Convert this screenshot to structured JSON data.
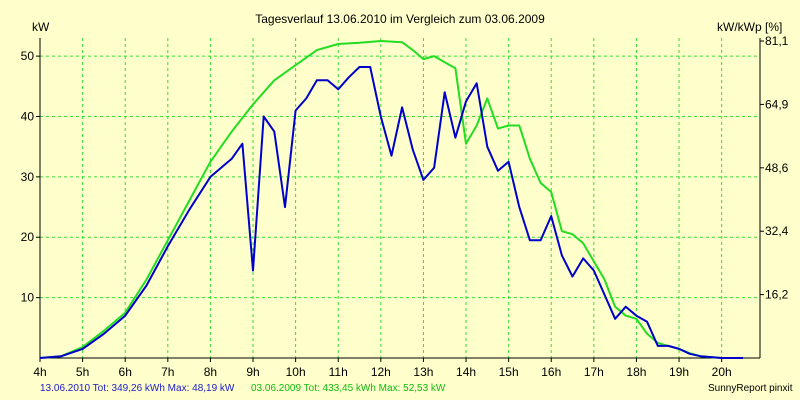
{
  "title": "Tagesverlauf 13.06.2010 im Vergleich zum 03.06.2009",
  "unit_left": "kW",
  "unit_right": "kW/kWp [%]",
  "footer": {
    "series1": "13.06.2010 Tot: 349,26 kWh Max: 48,19 kW",
    "series2": "03.06.2009 Tot: 433,45 kWh Max: 52,53 kW",
    "brand": "SunnyReport pinxit"
  },
  "colors": {
    "background": "#ffffcc",
    "grid": "#33dd33",
    "series1": "#0000cc",
    "series2": "#22dd22"
  },
  "chart_data": {
    "type": "line",
    "title": "Tagesverlauf 13.06.2010 im Vergleich zum 03.06.2009",
    "ylabel": "kW",
    "y2label": "kW/kWp [%]",
    "xlim": [
      4,
      20.9
    ],
    "ylim": [
      0,
      53
    ],
    "x_ticks": [
      4,
      5,
      6,
      7,
      8,
      9,
      10,
      11,
      12,
      13,
      14,
      15,
      16,
      17,
      18,
      19,
      20
    ],
    "x_tick_labels": [
      "4h",
      "5h",
      "6h",
      "7h",
      "8h",
      "9h",
      "10h",
      "11h",
      "12h",
      "13h",
      "14h",
      "15h",
      "16h",
      "17h",
      "18h",
      "19h",
      "20h"
    ],
    "y_ticks": [
      10,
      20,
      30,
      40,
      50
    ],
    "y_tick_labels": [
      "10",
      "20",
      "30",
      "40",
      "50"
    ],
    "y2_ticks": [
      16.2,
      32.4,
      48.6,
      64.9,
      81.1
    ],
    "y2_tick_labels": [
      "16,2",
      "32,4",
      "48,6",
      "64,9",
      "81,1"
    ],
    "y2_tick_values_kw": [
      10.5,
      21,
      31.5,
      42,
      52.5
    ],
    "grid": true,
    "series": [
      {
        "name": "13.06.2010",
        "color": "#0000cc",
        "x": [
          4,
          4.5,
          5,
          5.5,
          6,
          6.5,
          7,
          7.5,
          8,
          8.5,
          8.75,
          9,
          9.25,
          9.5,
          9.75,
          10,
          10.25,
          10.5,
          10.75,
          11,
          11.25,
          11.5,
          11.75,
          12,
          12.25,
          12.5,
          12.75,
          13,
          13.25,
          13.5,
          13.75,
          14,
          14.25,
          14.5,
          14.75,
          15,
          15.25,
          15.5,
          15.75,
          16,
          16.25,
          16.5,
          16.75,
          17,
          17.25,
          17.5,
          17.75,
          18,
          18.25,
          18.5,
          18.75,
          19,
          19.25,
          19.5,
          20,
          20.5
        ],
        "values": [
          0,
          0.3,
          1.5,
          4,
          7,
          12,
          18.5,
          24.5,
          30,
          33,
          35.5,
          14.5,
          40,
          37.5,
          25,
          41,
          43,
          46,
          46,
          44.5,
          46.5,
          48.2,
          48.2,
          40,
          33.5,
          41.5,
          34.5,
          29.5,
          31.5,
          44,
          36.5,
          42.5,
          45.5,
          35,
          31,
          32.5,
          25,
          19.5,
          19.5,
          23.5,
          17,
          13.5,
          16.5,
          14.5,
          10.5,
          6.5,
          8.5,
          7,
          6,
          2,
          2,
          1.5,
          0.7,
          0.3,
          0,
          0
        ]
      },
      {
        "name": "03.06.2009",
        "color": "#22dd22",
        "x": [
          4,
          4.5,
          5,
          5.5,
          6,
          6.5,
          7,
          7.5,
          8,
          8.5,
          9,
          9.5,
          10,
          10.5,
          11,
          11.5,
          12,
          12.5,
          12.75,
          13,
          13.25,
          13.5,
          13.75,
          14,
          14.25,
          14.5,
          14.75,
          15,
          15.25,
          15.5,
          15.75,
          16,
          16.25,
          16.5,
          16.75,
          17,
          17.25,
          17.5,
          17.75,
          18,
          18.25,
          18.5,
          18.75,
          19,
          19.25,
          19.5,
          20,
          20.5
        ],
        "values": [
          0,
          0.3,
          1.8,
          4.5,
          7.5,
          13,
          19.5,
          26,
          32.5,
          37.5,
          42,
          46,
          48.5,
          51,
          52,
          52.2,
          52.5,
          52.3,
          51,
          49.5,
          50,
          49,
          48,
          35.5,
          38.5,
          43,
          38,
          38.5,
          38.5,
          33,
          29,
          27.5,
          21,
          20.5,
          19,
          16,
          13,
          8.5,
          7,
          6.5,
          4,
          2.5,
          2,
          1.5,
          0.8,
          0.3,
          0,
          0
        ]
      }
    ]
  }
}
